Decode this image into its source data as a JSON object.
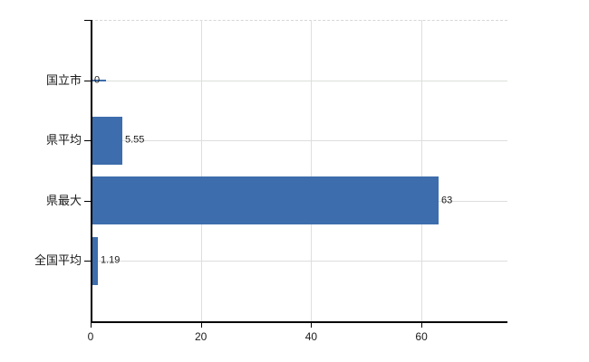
{
  "chart_data": {
    "type": "bar",
    "orientation": "horizontal",
    "title": "",
    "xlabel": "",
    "ylabel": "",
    "categories": [
      "国立市",
      "県平均",
      "県最大",
      "全国平均"
    ],
    "values": [
      0,
      5.55,
      63,
      1.19
    ],
    "value_labels": [
      "0",
      "5.55",
      "63",
      "1.19"
    ],
    "xticks": [
      0,
      20,
      40,
      60
    ],
    "xtick_labels": [
      "0",
      "20",
      "40",
      "60"
    ],
    "xlim": [
      0,
      75.6
    ],
    "grid": true,
    "legend": false,
    "colors": {
      "bar": "#3d6dac",
      "grid": "#dcdfdc",
      "plot_top_border": "#d6d6d6",
      "axis": "#000000",
      "text": "#1a1a1a",
      "background": "#ffffff"
    }
  }
}
